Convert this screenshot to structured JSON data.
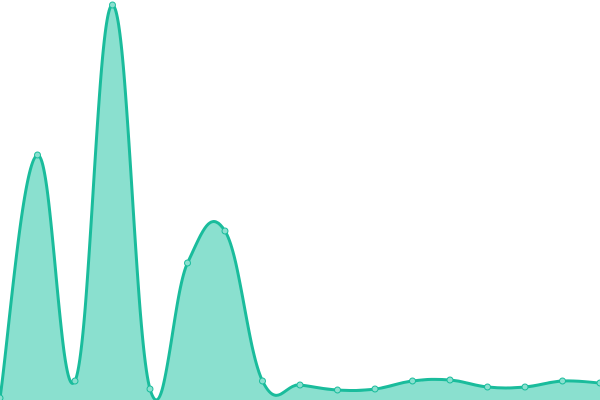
{
  "chart_data": {
    "type": "area",
    "title": "",
    "xlabel": "",
    "ylabel": "",
    "x": [
      0,
      1,
      2,
      3,
      4,
      5,
      6,
      7,
      8,
      9,
      10,
      11,
      12,
      13,
      14,
      15,
      16
    ],
    "series": [
      {
        "values": [
          2,
          245,
          19,
          395,
          11,
          137,
          169,
          19,
          15,
          10,
          11,
          19,
          20,
          13,
          13,
          19,
          17
        ]
      }
    ],
    "ylim": [
      0,
      400
    ],
    "grid": false,
    "axes_visible": false,
    "smooth": true,
    "colors": {
      "line": "#1abc9c",
      "fill": "#8ae0cf",
      "point_fill": "#8ae0cf",
      "point_stroke": "#1abc9c"
    }
  }
}
